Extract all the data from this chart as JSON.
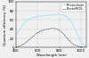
{
  "title": "",
  "xlabel": "Wavelength (nm)",
  "ylabel": "Quantum efficiency (%)",
  "xlim": [
    400,
    1050
  ],
  "ylim": [
    0,
    100
  ],
  "yticks": [
    0,
    20,
    40,
    60,
    80,
    100
  ],
  "xticks": [
    400,
    600,
    800,
    1000
  ],
  "photodiode_color": "#88ddff",
  "photomos_color": "#444444",
  "legend_labels": [
    "Photodiode",
    "PhotoMOS"
  ],
  "photodiode_x": [
    400,
    430,
    450,
    470,
    490,
    510,
    530,
    550,
    570,
    590,
    610,
    630,
    650,
    670,
    690,
    710,
    730,
    750,
    770,
    790,
    810,
    830,
    850,
    870,
    890,
    910,
    930,
    950,
    970,
    990,
    1010,
    1030,
    1050
  ],
  "photodiode_y": [
    28,
    38,
    46,
    52,
    57,
    61,
    63,
    65,
    66,
    67,
    68,
    69,
    69,
    70,
    70,
    71,
    71,
    72,
    72,
    73,
    72,
    71,
    70,
    67,
    63,
    57,
    48,
    38,
    27,
    17,
    9,
    4,
    1
  ],
  "photomos_x": [
    400,
    430,
    450,
    470,
    490,
    510,
    530,
    550,
    570,
    590,
    610,
    630,
    650,
    670,
    690,
    710,
    730,
    750,
    770,
    790,
    810,
    830,
    850,
    870,
    890,
    910,
    930,
    950,
    970,
    990,
    1010,
    1030,
    1050
  ],
  "photomos_y": [
    1,
    3,
    5,
    8,
    11,
    15,
    19,
    23,
    27,
    31,
    34,
    36,
    38,
    39,
    40,
    41,
    42,
    42,
    41,
    39,
    36,
    32,
    27,
    21,
    16,
    11,
    7,
    5,
    3,
    2,
    1,
    0.5,
    0.2
  ],
  "background_color": "#f0f0f0",
  "grid_color": "#cccccc"
}
